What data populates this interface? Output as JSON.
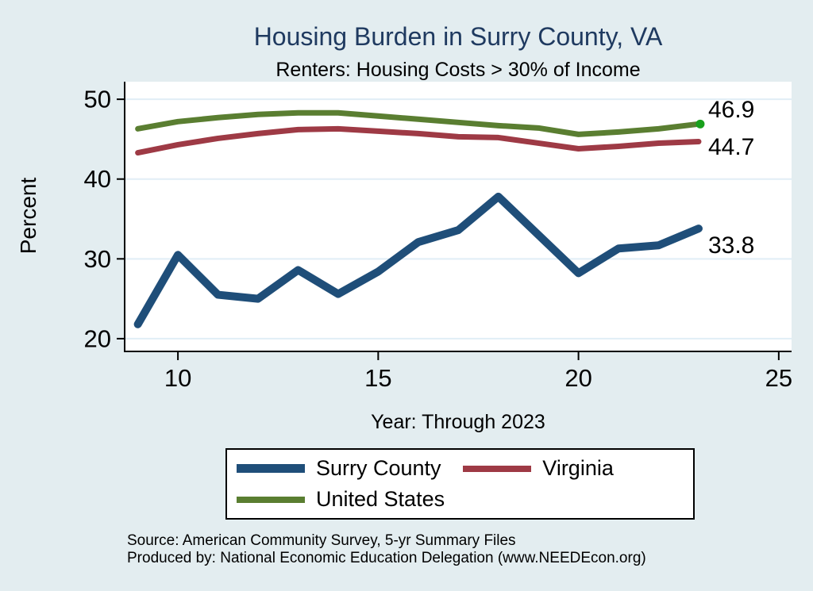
{
  "title": "Housing Burden in Surry County, VA",
  "subtitle": "Renters: Housing Costs > 30% of Income",
  "colors": {
    "background": "#e3edf0",
    "plot_bg": "#ffffff",
    "grid": "#e1eef6",
    "axis": "#000000",
    "title_text": "#1f3a60",
    "surry": "#1f4e79",
    "virginia": "#9e3a45",
    "us": "#5a7e31",
    "end_dot": "#18a01c"
  },
  "chart_data": {
    "type": "line",
    "x": [
      9,
      10,
      11,
      12,
      13,
      14,
      15,
      16,
      17,
      18,
      19,
      20,
      21,
      22,
      23
    ],
    "xticks": [
      10,
      15,
      20,
      25
    ],
    "yticks": [
      20,
      30,
      40,
      50
    ],
    "xlim": [
      8.67,
      25.32
    ],
    "ylim": [
      18.4,
      52.2
    ],
    "xlabel": "Year: Through 2023",
    "ylabel": "Percent",
    "grid": "horizontal",
    "legend_position": "bottom",
    "series": [
      {
        "name": "Surry County",
        "color_key": "surry",
        "width": 10,
        "end_label": "33.8",
        "end_marker": false,
        "values": [
          21.8,
          30.5,
          25.5,
          25.0,
          28.6,
          25.6,
          28.4,
          32.1,
          33.6,
          37.8,
          33.0,
          28.2,
          31.3,
          31.7,
          33.8
        ]
      },
      {
        "name": "Virginia",
        "color_key": "virginia",
        "width": 7,
        "end_label": "44.7",
        "end_marker": false,
        "values": [
          43.3,
          44.3,
          45.1,
          45.7,
          46.2,
          46.3,
          46.0,
          45.7,
          45.3,
          45.2,
          44.5,
          43.8,
          44.1,
          44.5,
          44.7
        ]
      },
      {
        "name": "United States",
        "color_key": "us",
        "width": 7,
        "end_label": "46.9",
        "end_marker": true,
        "values": [
          46.3,
          47.2,
          47.7,
          48.1,
          48.3,
          48.3,
          47.9,
          47.5,
          47.1,
          46.7,
          46.4,
          45.6,
          45.9,
          46.3,
          46.9
        ]
      }
    ]
  },
  "source": {
    "line1": "Source: American Community Survey, 5-yr Summary Files",
    "line2": "Produced by: National Economic Education Delegation (www.NEEDEcon.org)"
  }
}
